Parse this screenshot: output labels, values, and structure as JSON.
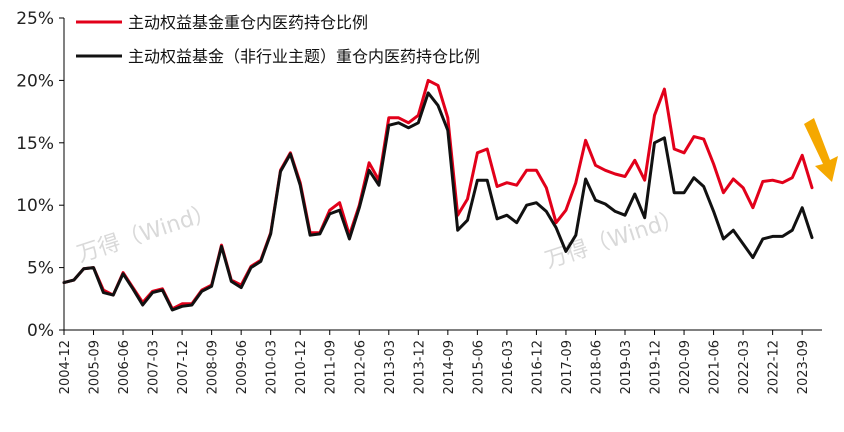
{
  "chart_data": {
    "type": "line",
    "title": "",
    "xlabel": "",
    "ylabel": "",
    "ylim": [
      0,
      25
    ],
    "y_ticks": [
      "0%",
      "5%",
      "10%",
      "15%",
      "20%",
      "25%"
    ],
    "y_unit": "%",
    "grid": false,
    "legend_position": "top-left",
    "x_start": "2004-12",
    "x_step_quarters": 1,
    "x_tick_labels": [
      "2004-12",
      "2005-09",
      "2006-06",
      "2007-03",
      "2007-12",
      "2008-09",
      "2009-06",
      "2010-03",
      "2010-12",
      "2011-09",
      "2012-06",
      "2013-03",
      "2013-12",
      "2014-09",
      "2015-06",
      "2016-03",
      "2016-12",
      "2017-09",
      "2018-06",
      "2019-03",
      "2019-12",
      "2020-09",
      "2021-06",
      "2022-03",
      "2022-12",
      "2023-09"
    ],
    "series": [
      {
        "name": "主动权益基金重仓内医药持仓比例",
        "color": "#e2001a",
        "values": [
          3.8,
          4.0,
          4.9,
          5.0,
          3.2,
          2.8,
          4.6,
          3.4,
          2.2,
          3.1,
          3.3,
          1.7,
          2.1,
          2.1,
          3.2,
          3.6,
          6.8,
          4.0,
          3.6,
          5.1,
          5.6,
          7.8,
          12.8,
          14.2,
          11.8,
          7.8,
          7.8,
          9.6,
          10.2,
          7.6,
          10.0,
          13.4,
          12.0,
          17.0,
          17.0,
          16.6,
          17.2,
          20.0,
          19.6,
          17.0,
          9.2,
          10.5,
          14.2,
          14.5,
          11.5,
          11.8,
          11.6,
          12.8,
          12.8,
          11.4,
          8.6,
          9.6,
          11.8,
          15.2,
          13.2,
          12.8,
          12.5,
          12.3,
          13.6,
          12.0,
          17.2,
          19.3,
          14.5,
          14.2,
          15.5,
          15.3,
          13.3,
          11.0,
          12.1,
          11.4,
          9.8,
          11.9,
          12.0,
          11.8,
          12.2,
          14.0,
          11.4
        ]
      },
      {
        "name": "主动权益基金（非行业主题）重仓内医药持仓比例",
        "color": "#111111",
        "values": [
          3.8,
          4.0,
          4.9,
          5.0,
          3.0,
          2.8,
          4.5,
          3.3,
          2.0,
          3.0,
          3.2,
          1.6,
          1.9,
          2.0,
          3.1,
          3.5,
          6.7,
          3.9,
          3.4,
          5.0,
          5.5,
          7.7,
          12.7,
          14.1,
          11.6,
          7.6,
          7.7,
          9.3,
          9.6,
          7.3,
          9.8,
          12.8,
          11.6,
          16.4,
          16.6,
          16.2,
          16.6,
          19.0,
          18.0,
          16.0,
          8.0,
          8.8,
          12.0,
          12.0,
          8.9,
          9.2,
          8.6,
          10.0,
          10.2,
          9.5,
          8.2,
          6.3,
          7.6,
          12.1,
          10.4,
          10.1,
          9.5,
          9.2,
          10.9,
          9.0,
          15.0,
          15.4,
          11.0,
          11.0,
          12.2,
          11.5,
          9.5,
          7.3,
          8.0,
          6.9,
          5.8,
          7.3,
          7.5,
          7.5,
          8.0,
          9.8,
          7.4
        ]
      }
    ],
    "annotation_arrow_color": "#f5a800",
    "watermarks": [
      "万得（Wind）",
      "万得（Wind）"
    ]
  }
}
